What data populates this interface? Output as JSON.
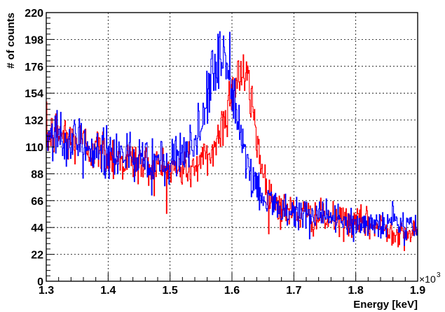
{
  "chart_data": {
    "type": "line",
    "title": "",
    "xlabel": "Energy [keV]",
    "ylabel": "# of counts",
    "x_multiplier_label": "×10",
    "x_multiplier_exp": "3",
    "xlim": [
      1.3,
      1.9
    ],
    "ylim": [
      0,
      220
    ],
    "grid": true,
    "x_ticks": [
      "1.3",
      "1.4",
      "1.5",
      "1.6",
      "1.7",
      "1.8",
      "1.9"
    ],
    "y_ticks": [
      "0",
      "22",
      "44",
      "66",
      "88",
      "110",
      "132",
      "154",
      "176",
      "198",
      "220"
    ],
    "colors": {
      "red_series": "#ff0000",
      "blue_series": "#0000ff"
    },
    "series": [
      {
        "color": "#ff0000",
        "x": [
          1.3,
          1.32,
          1.34,
          1.36,
          1.38,
          1.4,
          1.42,
          1.44,
          1.46,
          1.48,
          1.5,
          1.52,
          1.54,
          1.55,
          1.56,
          1.57,
          1.58,
          1.59,
          1.6,
          1.61,
          1.62,
          1.63,
          1.64,
          1.65,
          1.66,
          1.67,
          1.68,
          1.7,
          1.72,
          1.74,
          1.76,
          1.78,
          1.8,
          1.82,
          1.84,
          1.86,
          1.88,
          1.9
        ],
        "y": [
          118,
          122,
          116,
          112,
          108,
          104,
          100,
          98,
          95,
          93,
          92,
          92,
          94,
          97,
          101,
          108,
          120,
          138,
          157,
          170,
          168,
          152,
          120,
          88,
          72,
          64,
          60,
          56,
          54,
          52,
          50,
          49,
          48,
          46,
          44,
          42,
          40,
          38
        ]
      },
      {
        "color": "#0000ff",
        "x": [
          1.3,
          1.32,
          1.34,
          1.36,
          1.38,
          1.4,
          1.42,
          1.44,
          1.46,
          1.48,
          1.5,
          1.52,
          1.54,
          1.55,
          1.56,
          1.57,
          1.58,
          1.59,
          1.6,
          1.61,
          1.62,
          1.63,
          1.64,
          1.65,
          1.66,
          1.67,
          1.68,
          1.7,
          1.72,
          1.74,
          1.76,
          1.78,
          1.8,
          1.82,
          1.84,
          1.86,
          1.88,
          1.9
        ],
        "y": [
          120,
          118,
          114,
          110,
          106,
          104,
          101,
          99,
          96,
          94,
          95,
          100,
          112,
          128,
          150,
          172,
          190,
          186,
          160,
          132,
          108,
          88,
          75,
          66,
          62,
          60,
          58,
          57,
          55,
          53,
          51,
          50,
          49,
          48,
          47,
          47,
          46,
          45
        ]
      }
    ]
  }
}
